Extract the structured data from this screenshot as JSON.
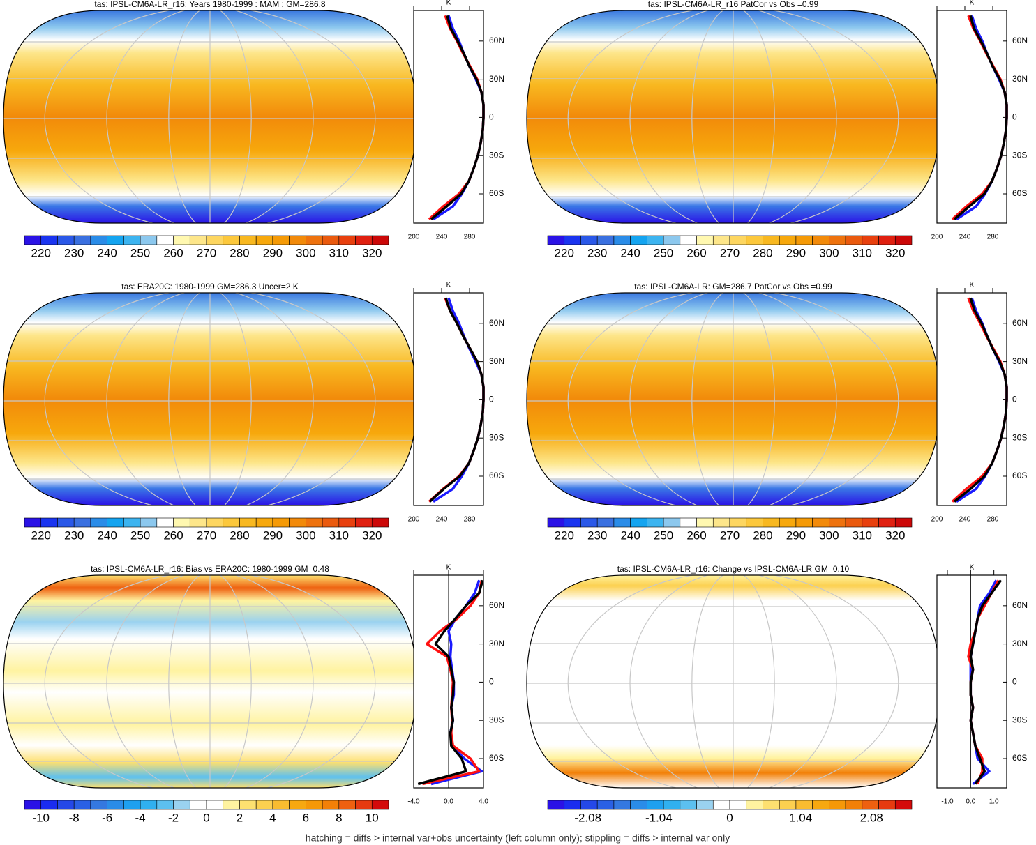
{
  "chart_data": [
    {
      "type": "contour-map",
      "title": "tas: IPSL-CM6A-LR_r16: Years 1980-1999 : MAM : GM=286.8",
      "colorbar": {
        "colors": [
          "#2a12e6",
          "#1a34f0",
          "#2a58e8",
          "#3a70e0",
          "#2a8ce8",
          "#14a4f0",
          "#3cb4f0",
          "#8cc8ee",
          "#ffffff",
          "#fff8b0",
          "#fde68a",
          "#fdd660",
          "#fcc83c",
          "#f8b820",
          "#f7a80c",
          "#f59a06",
          "#f28a0a",
          "#ee720e",
          "#ea5a0e",
          "#e8400e",
          "#e02010",
          "#cc0808"
        ],
        "xlim": [
          215,
          325
        ],
        "xticks": [
          220,
          230,
          240,
          250,
          260,
          270,
          280,
          290,
          300,
          310,
          320
        ]
      }
    },
    {
      "type": "line",
      "x_label": "K",
      "xlim": [
        200,
        300
      ],
      "xticks": [
        200,
        240,
        280
      ],
      "ylim": [
        -83,
        84
      ],
      "yticks": [
        {
          "value": -60,
          "label": "60S"
        },
        {
          "value": -30,
          "label": "30S"
        },
        0,
        {
          "value": 30,
          "label": "30N"
        },
        {
          "value": 60,
          "label": "60N"
        }
      ],
      "lat": [
        -80,
        -70,
        -60,
        -50,
        -40,
        -30,
        -20,
        -10,
        0,
        10,
        20,
        30,
        40,
        50,
        60,
        70,
        80
      ],
      "series": [
        {
          "color": "#1a1aff",
          "values": [
            228,
            256,
            269,
            279,
            286,
            292,
            296,
            299,
            300,
            300,
            297,
            289,
            280,
            272,
            265,
            256,
            250
          ]
        },
        {
          "color": "#ff1010",
          "values": [
            222,
            242,
            265,
            279,
            286,
            292,
            296,
            299,
            300,
            300,
            297,
            291,
            281,
            271,
            262,
            252,
            245
          ]
        },
        {
          "color": "#000000",
          "values": [
            225,
            247,
            268,
            279,
            286,
            292,
            296,
            299,
            300,
            300,
            297,
            290,
            280,
            272,
            263,
            253,
            248
          ]
        }
      ]
    },
    {
      "type": "contour-map",
      "title": "tas: IPSL-CM6A-LR_r16 PatCor vs Obs =0.99",
      "colorbar": {
        "colors": [
          "#2a12e6",
          "#1a34f0",
          "#2a58e8",
          "#3a70e0",
          "#2a8ce8",
          "#14a4f0",
          "#3cb4f0",
          "#8cc8ee",
          "#ffffff",
          "#fff8b0",
          "#fde68a",
          "#fdd660",
          "#fcc83c",
          "#f8b820",
          "#f7a80c",
          "#f59a06",
          "#f28a0a",
          "#ee720e",
          "#ea5a0e",
          "#e8400e",
          "#e02010",
          "#cc0808"
        ],
        "xlim": [
          215,
          325
        ],
        "xticks": [
          220,
          230,
          240,
          250,
          260,
          270,
          280,
          290,
          300,
          310,
          320
        ]
      }
    },
    {
      "type": "line",
      "x_label": "K",
      "xlim": [
        200,
        300
      ],
      "xticks": [
        200,
        240,
        280
      ],
      "ylim": [
        -83,
        84
      ],
      "yticks": [
        {
          "value": -60,
          "label": "60S"
        },
        {
          "value": -30,
          "label": "30S"
        },
        0,
        {
          "value": 30,
          "label": "30N"
        },
        {
          "value": 60,
          "label": "60N"
        }
      ],
      "lat": [
        -80,
        -70,
        -60,
        -50,
        -40,
        -30,
        -20,
        -10,
        0,
        10,
        20,
        30,
        40,
        50,
        60,
        70,
        80
      ],
      "series": [
        {
          "color": "#1a1aff",
          "values": [
            228,
            256,
            269,
            279,
            286,
            292,
            296,
            299,
            300,
            300,
            297,
            289,
            280,
            272,
            265,
            256,
            250
          ]
        },
        {
          "color": "#ff1010",
          "values": [
            222,
            242,
            265,
            279,
            286,
            292,
            296,
            299,
            300,
            300,
            297,
            291,
            281,
            271,
            262,
            252,
            245
          ]
        },
        {
          "color": "#000000",
          "values": [
            225,
            246,
            268,
            279,
            286,
            292,
            296,
            299,
            300,
            300,
            297,
            290,
            280,
            272,
            263,
            253,
            248
          ]
        }
      ]
    },
    {
      "type": "contour-map",
      "title": "tas: ERA20C: 1980-1999 GM=286.3 Uncer=2 K",
      "colorbar": {
        "colors": [
          "#2a12e6",
          "#1a34f0",
          "#2a58e8",
          "#3a70e0",
          "#2a8ce8",
          "#14a4f0",
          "#3cb4f0",
          "#8cc8ee",
          "#ffffff",
          "#fff8b0",
          "#fde68a",
          "#fdd660",
          "#fcc83c",
          "#f8b820",
          "#f7a80c",
          "#f59a06",
          "#f28a0a",
          "#ee720e",
          "#ea5a0e",
          "#e8400e",
          "#e02010",
          "#cc0808"
        ],
        "xlim": [
          215,
          325
        ],
        "xticks": [
          220,
          230,
          240,
          250,
          260,
          270,
          280,
          290,
          300,
          310,
          320
        ]
      }
    },
    {
      "type": "line",
      "x_label": "K",
      "xlim": [
        200,
        300
      ],
      "xticks": [
        200,
        240,
        280
      ],
      "ylim": [
        -83,
        84
      ],
      "yticks": [
        {
          "value": -60,
          "label": "60S"
        },
        {
          "value": -30,
          "label": "30S"
        },
        0,
        {
          "value": 30,
          "label": "30N"
        },
        {
          "value": 60,
          "label": "60N"
        }
      ],
      "lat": [
        -80,
        -70,
        -60,
        -50,
        -40,
        -30,
        -20,
        -10,
        0,
        10,
        20,
        30,
        40,
        50,
        60,
        70,
        80
      ],
      "series": [
        {
          "color": "#1a1aff",
          "values": [
            228,
            256,
            269,
            279,
            286,
            292,
            296,
            299,
            300,
            300,
            297,
            289,
            280,
            272,
            265,
            256,
            250
          ]
        },
        {
          "color": "#ff1010",
          "values": [
            222,
            242,
            265,
            279,
            286,
            292,
            296,
            299,
            300,
            300,
            297,
            291,
            281,
            271,
            262,
            252,
            245
          ]
        },
        {
          "color": "#000000",
          "values": [
            223,
            243,
            266,
            279,
            286,
            292,
            296,
            299,
            300,
            300,
            297,
            291,
            281,
            271,
            262,
            252,
            246
          ]
        }
      ]
    },
    {
      "type": "contour-map",
      "title": "tas: IPSL-CM6A-LR: GM=286.7 PatCor vs Obs =0.99",
      "colorbar": {
        "colors": [
          "#2a12e6",
          "#1a34f0",
          "#2a58e8",
          "#3a70e0",
          "#2a8ce8",
          "#14a4f0",
          "#3cb4f0",
          "#8cc8ee",
          "#ffffff",
          "#fff8b0",
          "#fde68a",
          "#fdd660",
          "#fcc83c",
          "#f8b820",
          "#f7a80c",
          "#f59a06",
          "#f28a0a",
          "#ee720e",
          "#ea5a0e",
          "#e8400e",
          "#e02010",
          "#cc0808"
        ],
        "xlim": [
          215,
          325
        ],
        "xticks": [
          220,
          230,
          240,
          250,
          260,
          270,
          280,
          290,
          300,
          310,
          320
        ]
      }
    },
    {
      "type": "line",
      "x_label": "K",
      "xlim": [
        200,
        300
      ],
      "xticks": [
        200,
        240,
        280
      ],
      "ylim": [
        -83,
        84
      ],
      "yticks": [
        {
          "value": -60,
          "label": "60S"
        },
        {
          "value": -30,
          "label": "30S"
        },
        0,
        {
          "value": 30,
          "label": "30N"
        },
        {
          "value": 60,
          "label": "60N"
        }
      ],
      "lat": [
        -80,
        -70,
        -60,
        -50,
        -40,
        -30,
        -20,
        -10,
        0,
        10,
        20,
        30,
        40,
        50,
        60,
        70,
        80
      ],
      "series": [
        {
          "color": "#1a1aff",
          "values": [
            228,
            256,
            269,
            279,
            286,
            292,
            296,
            299,
            300,
            300,
            297,
            289,
            280,
            272,
            265,
            256,
            250
          ]
        },
        {
          "color": "#ff1010",
          "values": [
            222,
            242,
            265,
            279,
            286,
            292,
            296,
            299,
            300,
            300,
            297,
            291,
            281,
            271,
            262,
            252,
            245
          ]
        },
        {
          "color": "#000000",
          "values": [
            225,
            248,
            268,
            279,
            286,
            292,
            296,
            299,
            300,
            300,
            297,
            290,
            280,
            272,
            264,
            254,
            248
          ]
        }
      ]
    },
    {
      "type": "contour-map",
      "title": "tas: IPSL-CM6A-LR_r16: Bias vs ERA20C: 1980-1999 GM=0.48",
      "colorbar": {
        "colors": [
          "#2a12e6",
          "#1a2cf0",
          "#2448e8",
          "#2a60e4",
          "#3478e0",
          "#2a8ce8",
          "#1ea0f0",
          "#30b0f0",
          "#5cc0f0",
          "#9ad2f0",
          "#ffffff",
          "#ffffff",
          "#fff3a0",
          "#fde070",
          "#fcd050",
          "#f9bc30",
          "#f7a810",
          "#f59808",
          "#f28008",
          "#ee6010",
          "#e63a10",
          "#d40a0a"
        ],
        "xlim": [
          -11,
          11
        ],
        "xticks": [
          -10,
          -8,
          -6,
          -4,
          -2,
          0,
          2,
          4,
          6,
          8,
          10
        ]
      }
    },
    {
      "type": "line",
      "x_label": "K",
      "xlim": [
        -4,
        4
      ],
      "xticks": [
        {
          "value": -4,
          "label": "-4.0"
        },
        {
          "value": 0,
          "label": "0.0"
        },
        {
          "value": 4,
          "label": "4.0"
        }
      ],
      "zero_line": true,
      "ylim": [
        -83,
        84
      ],
      "yticks": [
        {
          "value": -60,
          "label": "60S"
        },
        {
          "value": -30,
          "label": "30S"
        },
        0,
        {
          "value": 30,
          "label": "30N"
        },
        {
          "value": 60,
          "label": "60N"
        }
      ],
      "lat": [
        -80,
        -70,
        -60,
        -50,
        -40,
        -30,
        -20,
        -10,
        0,
        10,
        20,
        30,
        40,
        50,
        60,
        70,
        80
      ],
      "series": [
        {
          "color": "#1a1aff",
          "values": [
            -2.0,
            3.8,
            1.8,
            0.4,
            0.2,
            0.5,
            0.3,
            0.6,
            0.6,
            0.4,
            0.2,
            0.3,
            0.0,
            0.8,
            2.0,
            3.0,
            3.5
          ]
        },
        {
          "color": "#ff1010",
          "values": [
            -3.0,
            3.5,
            2.5,
            0.5,
            0.3,
            0.4,
            0.3,
            0.4,
            0.5,
            0.2,
            -0.2,
            -2.5,
            -1.0,
            1.0,
            2.5,
            3.5,
            3.8
          ]
        },
        {
          "color": "#000000",
          "values": [
            -3.5,
            2.0,
            1.5,
            0.3,
            0.2,
            0.5,
            0.3,
            0.5,
            0.6,
            0.3,
            0.0,
            -1.5,
            -0.5,
            0.8,
            2.0,
            3.5,
            3.9
          ]
        }
      ]
    },
    {
      "type": "contour-map",
      "title": "tas: IPSL-CM6A-LR_r16: Change vs IPSL-CM6A-LR GM=0.10",
      "colorbar": {
        "colors": [
          "#2a12e6",
          "#1a2cf0",
          "#2448e8",
          "#2a60e4",
          "#3478e0",
          "#2a8ce8",
          "#1ea0f0",
          "#30b0f0",
          "#5cc0f0",
          "#9ad2f0",
          "#ffffff",
          "#ffffff",
          "#fff3a0",
          "#fde070",
          "#fcd050",
          "#f9bc30",
          "#f7a810",
          "#f59808",
          "#f28008",
          "#ee6010",
          "#e63a10",
          "#d40a0a"
        ],
        "xlim": [
          -2.67,
          2.67
        ],
        "xticks": [
          -2.08,
          -1.04,
          0,
          1.04,
          2.08
        ]
      }
    },
    {
      "type": "line",
      "x_label": "K",
      "xlim": [
        -1.45,
        1.55
      ],
      "xticks": [
        {
          "value": -1,
          "label": "-1.0"
        },
        {
          "value": 0,
          "label": "0.0"
        },
        {
          "value": 1,
          "label": "1.0"
        }
      ],
      "zero_line": true,
      "ylim": [
        -83,
        84
      ],
      "yticks": [
        {
          "value": -60,
          "label": "60S"
        },
        {
          "value": -30,
          "label": "30S"
        },
        0,
        {
          "value": 30,
          "label": "30N"
        },
        {
          "value": 60,
          "label": "60N"
        }
      ],
      "lat": [
        -80,
        -70,
        -60,
        -50,
        -40,
        -30,
        -20,
        -10,
        0,
        10,
        20,
        30,
        40,
        50,
        60,
        70,
        80
      ],
      "series": [
        {
          "color": "#1a1aff",
          "values": [
            0.1,
            0.8,
            0.3,
            0.2,
            0.1,
            0.0,
            0.1,
            0.0,
            0.0,
            0.0,
            0.0,
            0.1,
            0.2,
            0.3,
            0.4,
            0.8,
            1.1
          ]
        },
        {
          "color": "#ff1010",
          "values": [
            0.3,
            0.5,
            0.5,
            0.2,
            0.1,
            0.0,
            0.1,
            0.0,
            0.0,
            0.1,
            -0.1,
            0.0,
            0.2,
            0.3,
            0.6,
            0.9,
            1.2
          ]
        },
        {
          "color": "#000000",
          "values": [
            0.2,
            0.6,
            0.4,
            0.2,
            0.1,
            0.0,
            0.1,
            0.0,
            0.0,
            0.1,
            0.0,
            0.1,
            0.2,
            0.3,
            0.5,
            0.9,
            1.3
          ]
        }
      ]
    }
  ],
  "caption": "hatching = diffs > internal var+obs uncertainty (left column only); stippling = diffs > internal var only"
}
